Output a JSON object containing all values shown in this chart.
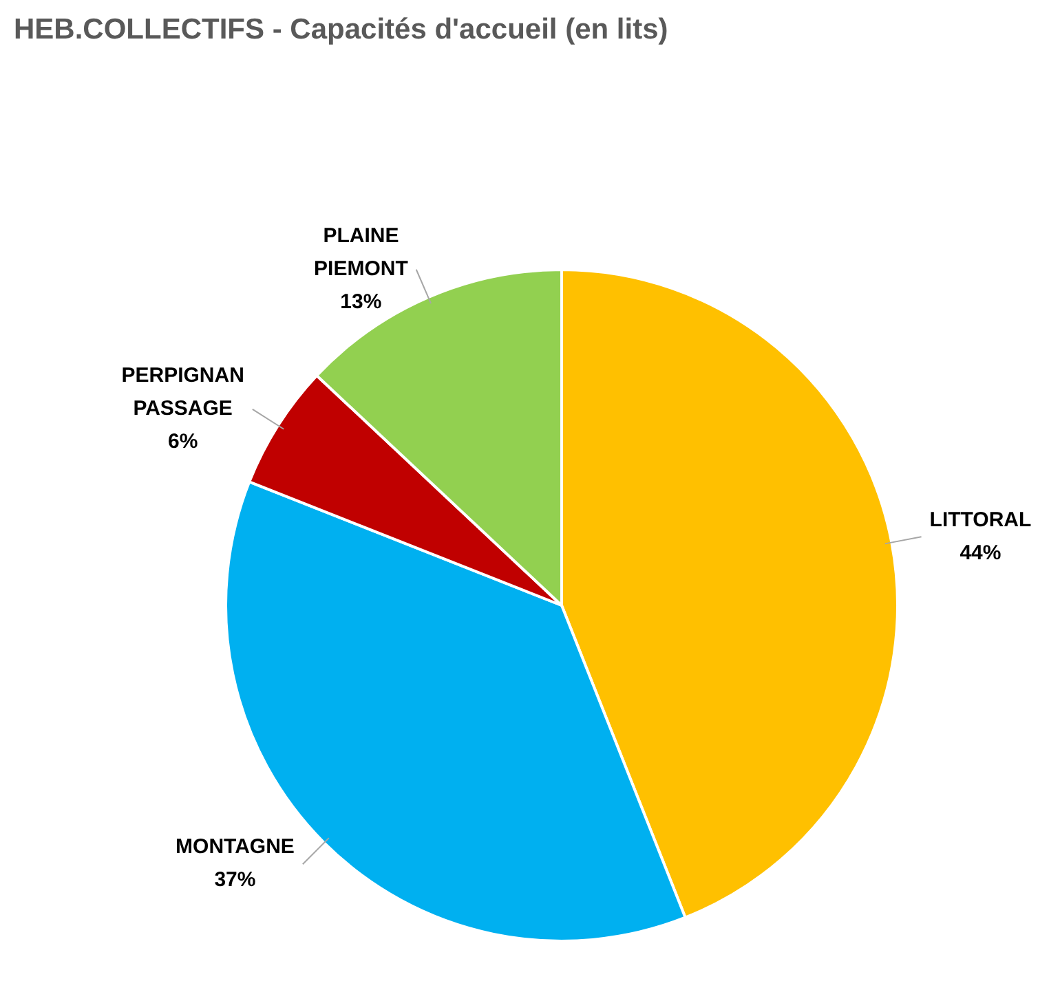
{
  "chart_data": {
    "type": "pie",
    "title": "HEB.COLLECTIFS - Capacités d'accueil (en lits)",
    "categories": [
      "LITTORAL",
      "MONTAGNE",
      "PERPIGNAN PASSAGE",
      "PLAINE PIEMONT"
    ],
    "values": [
      44,
      37,
      6,
      13
    ],
    "value_labels": [
      "44%",
      "37%",
      "6%",
      "13%"
    ],
    "colors": [
      "#ffc000",
      "#00b0f0",
      "#c00000",
      "#92d050"
    ],
    "legend": false
  }
}
